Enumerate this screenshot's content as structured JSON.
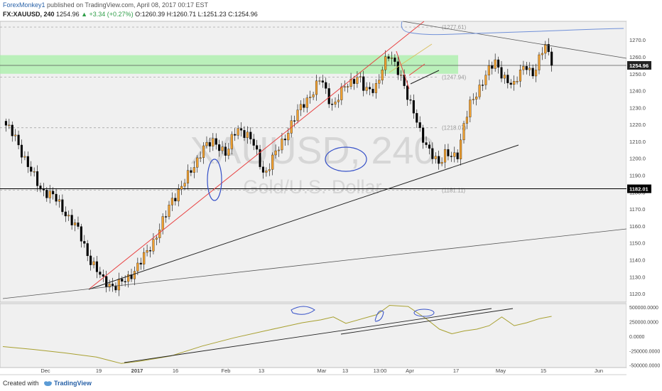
{
  "header": {
    "author": "ForexMonkey1",
    "published": "published on TradingView.com, April 08, 2017 00:17 EST",
    "symbol": "FX:XAUUSD, 240",
    "last": "1254.96",
    "change": "▲ +3.34 (+0.27%)",
    "ohlc": "O:1260.39 H:1260.71 L:1251.23 C:1254.96"
  },
  "footer": {
    "created_with": "Created with",
    "brand": "TradingView"
  },
  "colors": {
    "up": "#f0a030",
    "down": "#000000",
    "zone": "#a8f0a8",
    "trend_red": "#e84040",
    "ellipse": "#3550c8",
    "obv": "#a8a030",
    "cloud": "#7090d8",
    "dashed": "#9a9a9a"
  },
  "chart_data": [
    {
      "type": "candlestick",
      "title": "XAUUSD, 240",
      "watermark": "XAUUSD, 240",
      "watermark_sub": "Gold/U.S. Dollar",
      "ylim": [
        1115,
        1281
      ],
      "y_ticks": [
        1120,
        1130,
        1140,
        1150,
        1160,
        1170,
        1180,
        1190,
        1200,
        1210,
        1220,
        1230,
        1240,
        1250,
        1260,
        1270
      ],
      "x_tick_labels": [
        "Dec",
        "19",
        "2017",
        "16",
        "Feb",
        "13",
        "Mar",
        "13",
        "13:00",
        "Apr",
        "17",
        "May",
        "15",
        "Jun"
      ],
      "price_label": "1254.96",
      "level_label": "1182.01",
      "levels": [
        {
          "label": "1277.61",
          "value": 1277.61,
          "style": "dashed"
        },
        {
          "label": "1247.94",
          "value": 1247.94,
          "style": "dashed"
        },
        {
          "label": "1218.07",
          "value": 1218.07,
          "style": "dashed"
        },
        {
          "label": "1181.11",
          "value": 1181.11,
          "style": "dashed"
        },
        {
          "label": "1182.01",
          "value": 1182.01,
          "style": "solid"
        }
      ],
      "supply_zone": [
        1250,
        1261
      ],
      "close_path": [
        [
          0,
          1222
        ],
        [
          0.02,
          1212
        ],
        [
          0.04,
          1196
        ],
        [
          0.06,
          1182
        ],
        [
          0.08,
          1178
        ],
        [
          0.1,
          1168
        ],
        [
          0.12,
          1158
        ],
        [
          0.14,
          1140
        ],
        [
          0.16,
          1128
        ],
        [
          0.18,
          1124
        ],
        [
          0.2,
          1129
        ],
        [
          0.22,
          1138
        ],
        [
          0.24,
          1150
        ],
        [
          0.26,
          1165
        ],
        [
          0.27,
          1175
        ],
        [
          0.29,
          1185
        ],
        [
          0.31,
          1198
        ],
        [
          0.32,
          1206
        ],
        [
          0.34,
          1210
        ],
        [
          0.36,
          1202
        ],
        [
          0.37,
          1215
        ],
        [
          0.38,
          1218
        ],
        [
          0.4,
          1210
        ],
        [
          0.41,
          1200
        ],
        [
          0.42,
          1190
        ],
        [
          0.44,
          1205
        ],
        [
          0.46,
          1218
        ],
        [
          0.48,
          1232
        ],
        [
          0.5,
          1240
        ],
        [
          0.51,
          1248
        ],
        [
          0.52,
          1238
        ],
        [
          0.53,
          1230
        ],
        [
          0.55,
          1244
        ],
        [
          0.57,
          1248
        ],
        [
          0.58,
          1240
        ],
        [
          0.6,
          1243
        ],
        [
          0.61,
          1254
        ],
        [
          0.62,
          1262
        ],
        [
          0.63,
          1256
        ],
        [
          0.64,
          1246
        ],
        [
          0.65,
          1234
        ],
        [
          0.66,
          1228
        ],
        [
          0.67,
          1215
        ],
        [
          0.68,
          1205
        ],
        [
          0.7,
          1198
        ],
        [
          0.71,
          1203
        ],
        [
          0.72,
          1200
        ],
        [
          0.73,
          1203
        ],
        [
          0.74,
          1222
        ],
        [
          0.75,
          1232
        ],
        [
          0.76,
          1238
        ],
        [
          0.77,
          1247
        ],
        [
          0.78,
          1253
        ],
        [
          0.79,
          1256
        ],
        [
          0.8,
          1250
        ],
        [
          0.81,
          1246
        ],
        [
          0.82,
          1242
        ],
        [
          0.83,
          1252
        ],
        [
          0.84,
          1256
        ],
        [
          0.85,
          1248
        ],
        [
          0.86,
          1258
        ],
        [
          0.87,
          1269
        ],
        [
          0.88,
          1254.96
        ]
      ]
    },
    {
      "type": "line",
      "title": "OBV",
      "ylim": [
        -540000,
        560000
      ],
      "y_ticks": [
        500000,
        250000,
        0,
        -250000,
        -500000
      ],
      "y_tick_labels": [
        "500000.0000",
        "250000.0000",
        "0.0000",
        "-250000.0000",
        "-500000.0000"
      ],
      "path": [
        [
          0,
          -180000
        ],
        [
          0.05,
          -230000
        ],
        [
          0.1,
          -290000
        ],
        [
          0.15,
          -360000
        ],
        [
          0.19,
          -470000
        ],
        [
          0.22,
          -430000
        ],
        [
          0.27,
          -340000
        ],
        [
          0.32,
          -170000
        ],
        [
          0.37,
          -30000
        ],
        [
          0.42,
          90000
        ],
        [
          0.45,
          160000
        ],
        [
          0.48,
          230000
        ],
        [
          0.51,
          280000
        ],
        [
          0.53,
          330000
        ],
        [
          0.55,
          220000
        ],
        [
          0.6,
          370000
        ],
        [
          0.62,
          530000
        ],
        [
          0.65,
          510000
        ],
        [
          0.68,
          290000
        ],
        [
          0.7,
          120000
        ],
        [
          0.72,
          40000
        ],
        [
          0.74,
          90000
        ],
        [
          0.76,
          120000
        ],
        [
          0.78,
          180000
        ],
        [
          0.8,
          330000
        ],
        [
          0.82,
          180000
        ],
        [
          0.84,
          230000
        ],
        [
          0.86,
          300000
        ],
        [
          0.88,
          340000
        ]
      ]
    }
  ]
}
